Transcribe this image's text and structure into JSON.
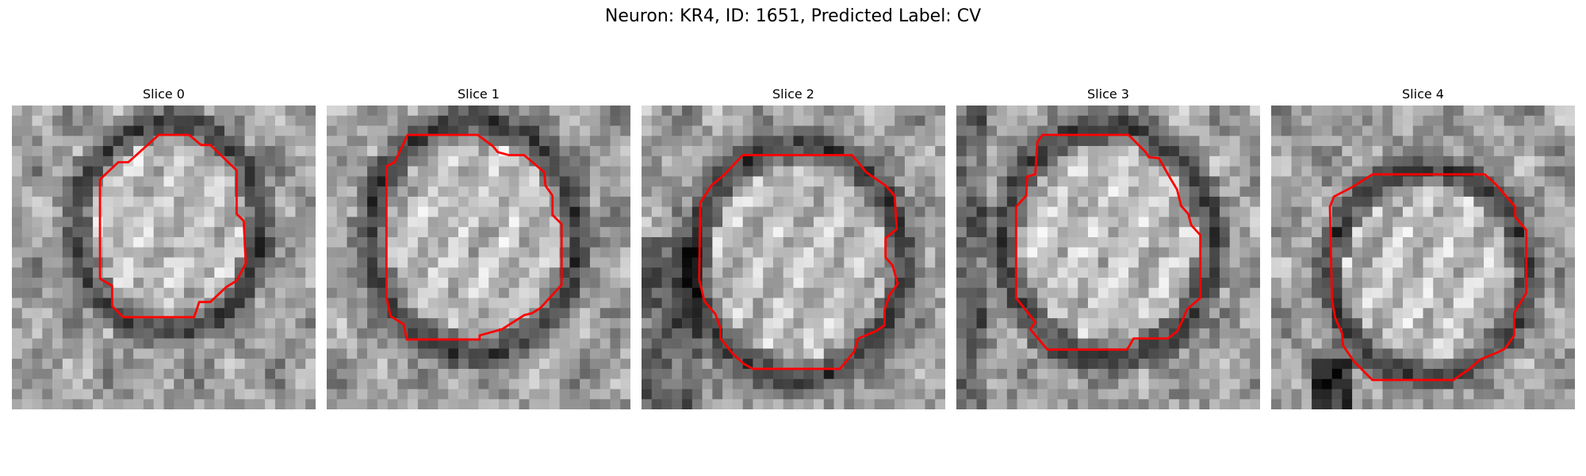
{
  "figure": {
    "title": "Neuron: KR4, ID: 1651, Predicted Label: CV"
  },
  "panels": [
    {
      "title": "Slice 0"
    },
    {
      "title": "Slice 1"
    },
    {
      "title": "Slice 2"
    },
    {
      "title": "Slice 3"
    },
    {
      "title": "Slice 4"
    }
  ],
  "colors": {
    "contour": "#ff0000",
    "background": "#ffffff"
  }
}
